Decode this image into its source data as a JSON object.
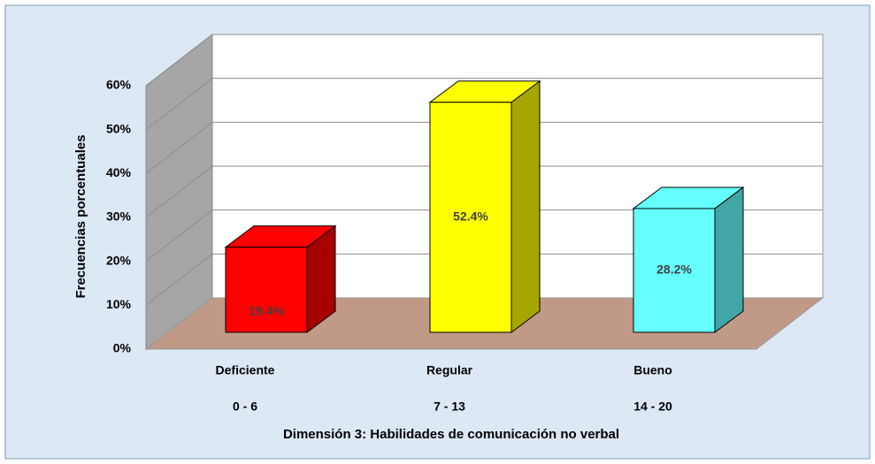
{
  "chart_data": {
    "type": "bar3d",
    "ylabel": "Frecuencias porcentuales",
    "xlabel": "Dimensión 3: Habilidades de comunicación no verbal",
    "categories": [
      "Deficiente",
      "Regular",
      "Bueno"
    ],
    "category_ranges": [
      "0 - 6",
      "7 - 13",
      "14 - 20"
    ],
    "values": [
      19.4,
      52.4,
      28.2
    ],
    "value_labels": [
      "19.4%",
      "52.4%",
      "28.2%"
    ],
    "colors": [
      "#ff0000",
      "#ffff00",
      "#66ffff"
    ],
    "ylim": [
      0,
      60
    ],
    "yticks": [
      {
        "value": 0,
        "label": "0%"
      },
      {
        "value": 10,
        "label": "10%"
      },
      {
        "value": 20,
        "label": "20%"
      },
      {
        "value": 30,
        "label": "30%"
      },
      {
        "value": 40,
        "label": "40%"
      },
      {
        "value": 50,
        "label": "50%"
      },
      {
        "value": 60,
        "label": "60%"
      }
    ],
    "grid": true
  }
}
